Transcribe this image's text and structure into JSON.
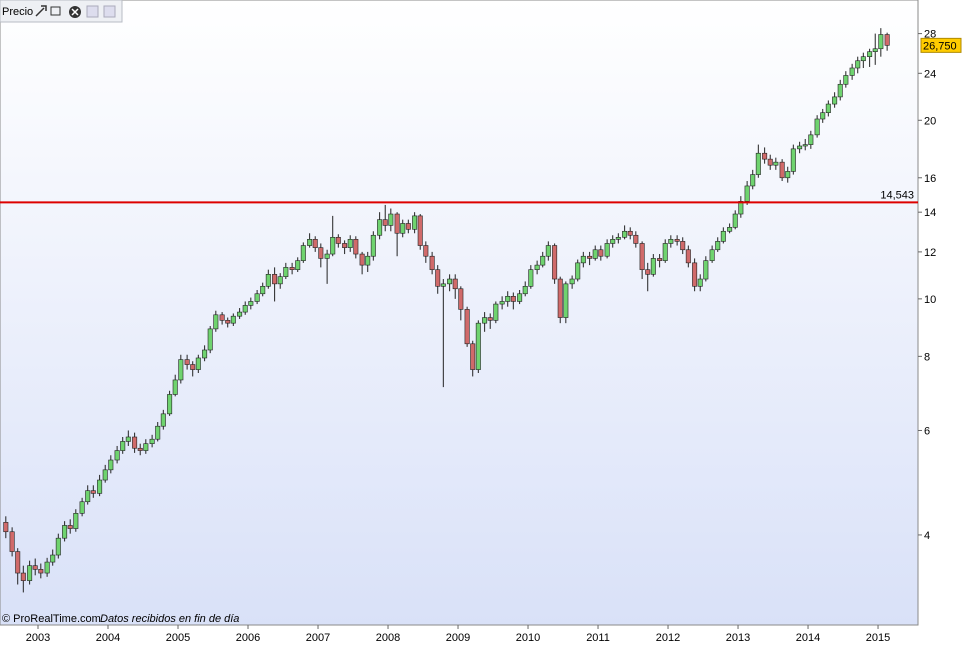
{
  "chart_data": {
    "type": "candlestick",
    "title": "Precio",
    "footer": "© ProRealTime.com",
    "footer_note": "Datos recibidos en fin de día",
    "log_scale": true,
    "up_color": "#6fd36f",
    "down_color": "#d06a6a",
    "level_color": "#dd0000",
    "price_box_color": "#ffcc00",
    "level": {
      "value": 14.543,
      "label": "14,543"
    },
    "last_price": {
      "value": 26.75,
      "label": "26,750"
    },
    "xlim": [
      2002.457,
      2015.571
    ],
    "xticks": [
      2003,
      2004,
      2005,
      2006,
      2007,
      2008,
      2009,
      2010,
      2011,
      2012,
      2013,
      2014,
      2015
    ],
    "ylim": [
      2.82,
      31.9
    ],
    "yticks": [
      4,
      6,
      8,
      10,
      12,
      14,
      16,
      20,
      24,
      28
    ],
    "x": [
      2002.54,
      2002.63,
      2002.71,
      2002.79,
      2002.88,
      2002.96,
      2003.04,
      2003.13,
      2003.21,
      2003.29,
      2003.38,
      2003.46,
      2003.54,
      2003.63,
      2003.71,
      2003.79,
      2003.88,
      2003.96,
      2004.04,
      2004.13,
      2004.21,
      2004.29,
      2004.38,
      2004.46,
      2004.54,
      2004.63,
      2004.71,
      2004.79,
      2004.88,
      2004.96,
      2005.04,
      2005.13,
      2005.21,
      2005.29,
      2005.38,
      2005.46,
      2005.54,
      2005.63,
      2005.71,
      2005.79,
      2005.88,
      2005.96,
      2006.04,
      2006.13,
      2006.21,
      2006.29,
      2006.38,
      2006.46,
      2006.54,
      2006.63,
      2006.71,
      2006.79,
      2006.88,
      2006.96,
      2007.04,
      2007.13,
      2007.21,
      2007.29,
      2007.38,
      2007.46,
      2007.54,
      2007.63,
      2007.71,
      2007.79,
      2007.88,
      2007.96,
      2008.04,
      2008.13,
      2008.21,
      2008.29,
      2008.38,
      2008.46,
      2008.54,
      2008.63,
      2008.71,
      2008.79,
      2008.88,
      2008.96,
      2009.04,
      2009.13,
      2009.21,
      2009.29,
      2009.38,
      2009.46,
      2009.54,
      2009.63,
      2009.71,
      2009.79,
      2009.88,
      2009.96,
      2010.04,
      2010.13,
      2010.21,
      2010.29,
      2010.38,
      2010.46,
      2010.54,
      2010.63,
      2010.71,
      2010.79,
      2010.88,
      2010.96,
      2011.04,
      2011.13,
      2011.21,
      2011.29,
      2011.38,
      2011.46,
      2011.54,
      2011.63,
      2011.71,
      2011.79,
      2011.88,
      2011.96,
      2012.04,
      2012.13,
      2012.21,
      2012.29,
      2012.38,
      2012.46,
      2012.54,
      2012.63,
      2012.71,
      2012.79,
      2012.88,
      2012.96,
      2013.04,
      2013.13,
      2013.21,
      2013.29,
      2013.38,
      2013.46,
      2013.54,
      2013.63,
      2013.71,
      2013.79,
      2013.88,
      2013.96,
      2014.04,
      2014.13,
      2014.21,
      2014.29,
      2014.38,
      2014.46,
      2014.54,
      2014.63,
      2014.71,
      2014.79,
      2014.88,
      2014.96,
      2015.04,
      2015.13
    ],
    "open": [
      4.2,
      4.05,
      3.75,
      3.45,
      3.35,
      3.55,
      3.5,
      3.45,
      3.6,
      3.7,
      3.95,
      4.15,
      4.1,
      4.35,
      4.55,
      4.75,
      4.7,
      4.95,
      5.15,
      5.35,
      5.55,
      5.75,
      5.85,
      5.6,
      5.55,
      5.7,
      5.8,
      6.1,
      6.4,
      6.9,
      7.3,
      7.9,
      7.75,
      7.6,
      7.95,
      8.2,
      8.9,
      9.4,
      9.2,
      9.1,
      9.35,
      9.5,
      9.75,
      9.9,
      10.2,
      10.5,
      11.0,
      10.6,
      10.9,
      11.3,
      11.2,
      11.6,
      12.3,
      12.6,
      12.2,
      11.7,
      11.9,
      12.7,
      12.4,
      12.2,
      12.6,
      11.9,
      11.4,
      11.8,
      12.8,
      13.6,
      13.3,
      13.9,
      12.9,
      13.4,
      13.1,
      13.8,
      12.3,
      11.8,
      11.2,
      10.5,
      10.6,
      10.8,
      10.4,
      9.6,
      8.4,
      7.6,
      9.1,
      9.3,
      9.2,
      9.8,
      9.9,
      10.1,
      9.9,
      10.2,
      10.5,
      11.2,
      11.4,
      11.8,
      12.3,
      10.8,
      9.3,
      10.6,
      10.8,
      11.5,
      11.8,
      11.7,
      12.1,
      11.8,
      12.4,
      12.6,
      12.7,
      13.0,
      12.8,
      12.4,
      11.2,
      11.0,
      11.7,
      11.6,
      12.4,
      12.6,
      12.5,
      12.1,
      11.5,
      10.5,
      10.8,
      11.6,
      12.1,
      12.5,
      13.0,
      13.2,
      13.9,
      14.6,
      15.5,
      16.2,
      17.6,
      17.2,
      16.8,
      17.0,
      16.0,
      16.4,
      17.9,
      18.1,
      18.2,
      18.9,
      20.1,
      20.6,
      21.3,
      21.9,
      23.0,
      23.8,
      24.5,
      25.2,
      25.6,
      26.1,
      26.4,
      27.9
    ],
    "high": [
      4.3,
      4.12,
      3.8,
      3.55,
      3.62,
      3.65,
      3.58,
      3.66,
      3.78,
      4.02,
      4.22,
      4.25,
      4.42,
      4.62,
      4.85,
      4.85,
      5.05,
      5.25,
      5.45,
      5.65,
      5.85,
      6.0,
      5.95,
      5.7,
      5.8,
      5.9,
      6.2,
      6.5,
      7.0,
      7.45,
      8.05,
      8.05,
      7.85,
      8.05,
      8.35,
      9.0,
      9.55,
      9.5,
      9.3,
      9.45,
      9.65,
      9.9,
      10.05,
      10.35,
      10.65,
      11.2,
      11.3,
      11.05,
      11.5,
      11.5,
      11.75,
      12.45,
      12.9,
      12.75,
      12.4,
      12.1,
      13.8,
      12.85,
      12.55,
      12.8,
      12.75,
      12.0,
      12.0,
      13.0,
      14.0,
      14.4,
      14.2,
      14.0,
      13.6,
      13.6,
      14.0,
      13.9,
      12.5,
      12.0,
      11.4,
      10.8,
      11.0,
      11.0,
      10.5,
      9.7,
      8.5,
      9.2,
      9.5,
      9.45,
      9.9,
      10.1,
      10.3,
      10.25,
      10.35,
      10.7,
      11.4,
      11.6,
      12.0,
      12.5,
      12.4,
      10.9,
      10.7,
      10.95,
      11.65,
      12.0,
      12.0,
      12.3,
      12.3,
      12.6,
      12.8,
      12.9,
      13.3,
      13.2,
      13.0,
      12.5,
      11.5,
      11.9,
      11.9,
      12.6,
      12.8,
      12.8,
      12.7,
      12.3,
      11.7,
      11.0,
      11.8,
      12.3,
      12.7,
      13.2,
      13.4,
      14.1,
      14.9,
      15.8,
      16.5,
      18.2,
      18.0,
      17.5,
      17.3,
      17.2,
      16.7,
      18.2,
      18.4,
      18.6,
      19.2,
      20.4,
      20.9,
      21.6,
      22.3,
      23.4,
      24.2,
      24.9,
      25.6,
      26.0,
      26.4,
      28.0,
      28.6,
      28.1
    ],
    "low": [
      3.95,
      3.68,
      3.3,
      3.2,
      3.3,
      3.42,
      3.38,
      3.4,
      3.55,
      3.65,
      3.9,
      4.02,
      4.05,
      4.3,
      4.5,
      4.62,
      4.65,
      4.9,
      5.08,
      5.28,
      5.48,
      5.65,
      5.5,
      5.45,
      5.48,
      5.62,
      5.75,
      6.02,
      6.35,
      6.85,
      7.2,
      7.6,
      7.4,
      7.5,
      7.85,
      8.1,
      8.8,
      9.05,
      8.95,
      9.0,
      9.25,
      9.4,
      9.6,
      9.8,
      10.1,
      10.4,
      9.9,
      10.4,
      10.8,
      11.0,
      11.1,
      11.5,
      12.2,
      12.0,
      11.3,
      10.6,
      11.8,
      12.2,
      11.9,
      12.0,
      11.7,
      11.0,
      11.1,
      11.6,
      12.6,
      13.0,
      13.0,
      11.8,
      12.7,
      12.9,
      12.9,
      12.1,
      11.5,
      11.0,
      10.2,
      7.1,
      10.3,
      10.0,
      9.2,
      8.3,
      7.4,
      7.5,
      8.8,
      8.9,
      9.1,
      9.6,
      9.7,
      9.6,
      9.8,
      10.1,
      10.4,
      11.0,
      11.3,
      11.6,
      10.6,
      9.1,
      9.1,
      10.4,
      10.7,
      11.3,
      11.4,
      11.6,
      11.6,
      11.7,
      12.2,
      12.4,
      12.6,
      12.6,
      12.2,
      10.8,
      10.3,
      10.9,
      11.3,
      11.5,
      12.2,
      12.3,
      11.9,
      11.3,
      10.3,
      10.3,
      10.7,
      11.5,
      12.0,
      12.4,
      12.9,
      13.1,
      13.7,
      14.4,
      15.3,
      16.0,
      16.9,
      16.5,
      16.5,
      15.8,
      15.7,
      16.2,
      17.6,
      17.8,
      17.9,
      18.7,
      19.8,
      20.3,
      21.0,
      21.6,
      22.7,
      23.4,
      24.0,
      24.5,
      24.6,
      24.8,
      25.6,
      26.2
    ],
    "close": [
      4.05,
      3.75,
      3.45,
      3.35,
      3.55,
      3.5,
      3.45,
      3.6,
      3.7,
      3.95,
      4.15,
      4.1,
      4.35,
      4.55,
      4.75,
      4.7,
      4.95,
      5.15,
      5.35,
      5.55,
      5.75,
      5.85,
      5.6,
      5.55,
      5.7,
      5.8,
      6.1,
      6.4,
      6.9,
      7.3,
      7.9,
      7.75,
      7.6,
      7.95,
      8.2,
      8.9,
      9.4,
      9.2,
      9.1,
      9.35,
      9.5,
      9.75,
      9.9,
      10.2,
      10.5,
      11.0,
      10.6,
      10.9,
      11.3,
      11.2,
      11.6,
      12.3,
      12.6,
      12.2,
      11.7,
      11.9,
      12.7,
      12.4,
      12.2,
      12.6,
      11.9,
      11.4,
      11.8,
      12.8,
      13.6,
      13.3,
      13.9,
      12.9,
      13.4,
      13.1,
      13.8,
      12.3,
      11.8,
      11.2,
      10.5,
      10.6,
      10.8,
      10.4,
      9.6,
      8.4,
      7.6,
      9.1,
      9.3,
      9.2,
      9.8,
      9.9,
      10.1,
      9.9,
      10.2,
      10.5,
      11.2,
      11.4,
      11.8,
      12.3,
      10.8,
      9.3,
      10.6,
      10.8,
      11.5,
      11.8,
      11.7,
      12.1,
      11.8,
      12.4,
      12.6,
      12.7,
      13.0,
      12.8,
      12.4,
      11.2,
      11.0,
      11.7,
      11.6,
      12.4,
      12.6,
      12.5,
      12.1,
      11.5,
      10.5,
      10.8,
      11.6,
      12.1,
      12.5,
      13.0,
      13.2,
      13.9,
      14.6,
      15.5,
      16.2,
      17.6,
      17.2,
      16.8,
      17.0,
      16.0,
      16.4,
      17.9,
      18.1,
      18.2,
      18.9,
      20.1,
      20.6,
      21.3,
      21.9,
      23.0,
      23.8,
      24.5,
      25.2,
      25.6,
      26.1,
      26.4,
      27.9,
      26.75
    ]
  }
}
